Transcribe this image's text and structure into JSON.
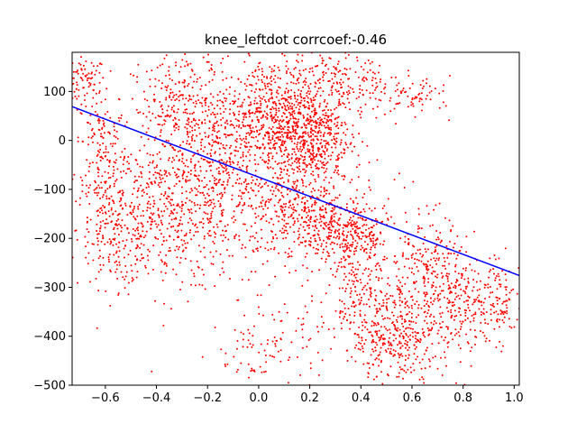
{
  "chart_data": {
    "type": "scatter",
    "title": "knee_leftdot corrcoef:-0.46",
    "xlabel": "",
    "ylabel": "",
    "xlim": [
      -0.73,
      1.02
    ],
    "ylim": [
      -500,
      180
    ],
    "x_ticks": [
      -0.6,
      -0.4,
      -0.2,
      0.0,
      0.2,
      0.4,
      0.6,
      0.8,
      1.0
    ],
    "x_tick_labels": [
      "−0.6",
      "−0.4",
      "−0.2",
      "0.0",
      "0.2",
      "0.4",
      "0.6",
      "0.8",
      "1.0"
    ],
    "y_ticks": [
      -500,
      -400,
      -300,
      -200,
      -100,
      0,
      100
    ],
    "y_tick_labels": [
      "−500",
      "−400",
      "−300",
      "−200",
      "−100",
      "0",
      "100"
    ],
    "grid": false,
    "colors": {
      "points": "#ff0000",
      "fit_line": "#0000ff"
    },
    "fit_line": {
      "x": [
        -0.73,
        1.02
      ],
      "y": [
        69,
        -276
      ]
    },
    "point_clusters": [
      {
        "cx": -0.68,
        "cy": 120,
        "sx": 0.04,
        "sy": 25,
        "n": 80
      },
      {
        "cx": -0.62,
        "cy": -20,
        "sx": 0.05,
        "sy": 70,
        "n": 150
      },
      {
        "cx": -0.55,
        "cy": -180,
        "sx": 0.08,
        "sy": 60,
        "n": 250
      },
      {
        "cx": -0.35,
        "cy": -150,
        "sx": 0.12,
        "sy": 80,
        "n": 400
      },
      {
        "cx": -0.3,
        "cy": 60,
        "sx": 0.1,
        "sy": 60,
        "n": 300
      },
      {
        "cx": -0.15,
        "cy": -60,
        "sx": 0.1,
        "sy": 90,
        "n": 400
      },
      {
        "cx": 0.05,
        "cy": 50,
        "sx": 0.1,
        "sy": 60,
        "n": 500
      },
      {
        "cx": 0.2,
        "cy": 10,
        "sx": 0.08,
        "sy": 50,
        "n": 500
      },
      {
        "cx": 0.3,
        "cy": 120,
        "sx": 0.1,
        "sy": 40,
        "n": 200
      },
      {
        "cx": 0.15,
        "cy": -150,
        "sx": 0.12,
        "sy": 50,
        "n": 400
      },
      {
        "cx": 0.35,
        "cy": -190,
        "sx": 0.08,
        "sy": 40,
        "n": 300
      },
      {
        "cx": 0.4,
        "cy": -320,
        "sx": 0.06,
        "sy": 60,
        "n": 200
      },
      {
        "cx": 0.55,
        "cy": -400,
        "sx": 0.08,
        "sy": 50,
        "n": 300
      },
      {
        "cx": 0.65,
        "cy": -280,
        "sx": 0.08,
        "sy": 70,
        "n": 250
      },
      {
        "cx": 0.8,
        "cy": -330,
        "sx": 0.08,
        "sy": 50,
        "n": 200
      },
      {
        "cx": 0.95,
        "cy": -330,
        "sx": 0.05,
        "sy": 40,
        "n": 100
      },
      {
        "cx": 0.6,
        "cy": 90,
        "sx": 0.08,
        "sy": 20,
        "n": 80
      },
      {
        "cx": 0.05,
        "cy": -420,
        "sx": 0.12,
        "sy": 50,
        "n": 120
      }
    ]
  }
}
